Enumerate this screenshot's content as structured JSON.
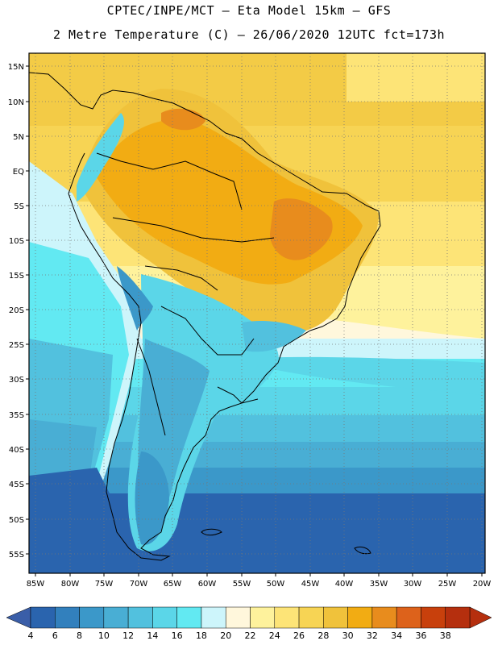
{
  "header": {
    "line1": "CPTEC/INPE/MCT –  Eta Model 15km – GFS",
    "line2": "2 Metre Temperature (C) – 26/06/2020 12UTC fct=173h"
  },
  "axes": {
    "lat_labels": [
      "15N",
      "10N",
      "5N",
      "EQ",
      "5S",
      "10S",
      "15S",
      "20S",
      "25S",
      "30S",
      "35S",
      "40S",
      "45S",
      "50S",
      "55S"
    ],
    "lon_labels": [
      "85W",
      "80W",
      "75W",
      "70W",
      "65W",
      "60W",
      "55W",
      "50W",
      "45W",
      "40W",
      "35W",
      "30W",
      "25W",
      "20W"
    ]
  },
  "legend": {
    "labels": [
      "4",
      "6",
      "8",
      "10",
      "12",
      "14",
      "16",
      "18",
      "20",
      "22",
      "24",
      "26",
      "28",
      "30",
      "32",
      "34",
      "36",
      "38"
    ],
    "colors": [
      "#2a64ae",
      "#3280bd",
      "#3b98c9",
      "#49aed4",
      "#52c1de",
      "#5bd6e8",
      "#62e9f2",
      "#cdf5fb",
      "#fff7dc",
      "#fef29c",
      "#fde477",
      "#f7d454",
      "#f0c23b",
      "#f2ac13",
      "#e88c1d",
      "#dd621b",
      "#c8400c",
      "#b52f0e"
    ],
    "underflow_color": "#3a5ea8",
    "overflow_color": "#b52f0e"
  }
}
